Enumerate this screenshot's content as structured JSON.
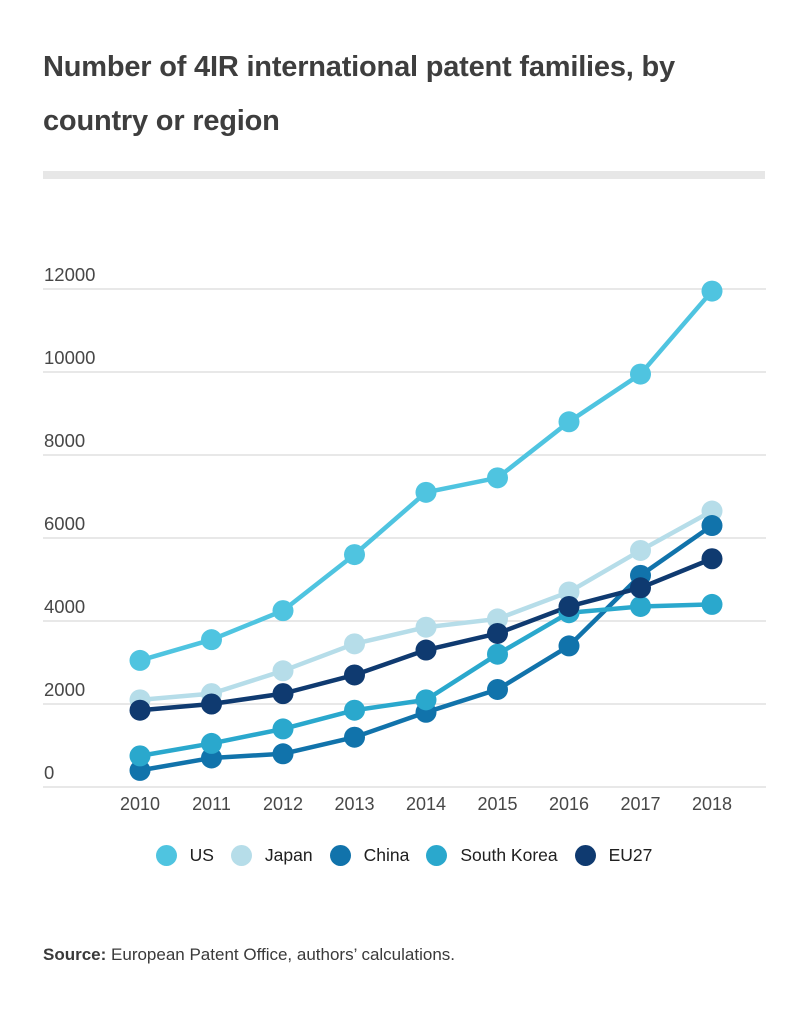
{
  "title": "Number of 4IR international patent families, by country or region",
  "source": {
    "label": "Source:",
    "text": " European Patent Office, authors’ calculations."
  },
  "colors": {
    "title_text": "#3e3e3e",
    "axis_text": "#474747",
    "grid_line": "#dbdbdb",
    "divider": "#e7e7e7",
    "background": "#ffffff"
  },
  "chart_data": {
    "type": "line",
    "x": [
      2010,
      2011,
      2012,
      2013,
      2014,
      2015,
      2016,
      2017,
      2018
    ],
    "series": [
      {
        "name": "US",
        "color": "#4fc4e0",
        "values": [
          3050,
          3550,
          4250,
          5600,
          7100,
          7450,
          8800,
          9950,
          11950
        ]
      },
      {
        "name": "Japan",
        "color": "#b6dde9",
        "values": [
          2100,
          2250,
          2800,
          3450,
          3850,
          4050,
          4700,
          5700,
          6650
        ]
      },
      {
        "name": "China",
        "color": "#1173ab",
        "values": [
          400,
          700,
          800,
          1200,
          1800,
          2350,
          3400,
          5100,
          6300
        ]
      },
      {
        "name": "South Korea",
        "color": "#2aa8cd",
        "values": [
          750,
          1050,
          1400,
          1850,
          2100,
          3200,
          4200,
          4350,
          4400
        ]
      },
      {
        "name": "EU27",
        "color": "#0f3a70",
        "values": [
          1850,
          2000,
          2250,
          2700,
          3300,
          3700,
          4350,
          4800,
          5500
        ]
      }
    ],
    "title": "Number of 4IR international patent families, by country or region",
    "xlabel": "",
    "ylabel": "",
    "ylim": [
      0,
      12000
    ],
    "ytick_step": 2000,
    "yticks": [
      0,
      2000,
      4000,
      6000,
      8000,
      10000,
      12000
    ],
    "grid": true,
    "legend_position": "bottom"
  }
}
